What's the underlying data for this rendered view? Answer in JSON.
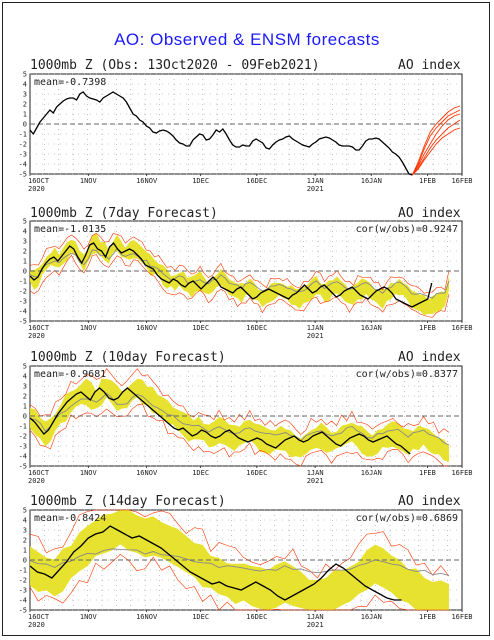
{
  "title": "AO: Observed & ENSM forecasts",
  "colors": {
    "title": "#1a1aff",
    "observed": "#000000",
    "ensemble_band": "#e6e024",
    "ensemble_member": "#ff3300",
    "ensemble_mean": "#888888",
    "zero_line": "#666666"
  },
  "chart_data": [
    {
      "type": "line",
      "title": "1000mb Z (Obs: 13Oct2020 - 09Feb2021)",
      "right_label": "AO index",
      "mean_label": "mean=-0.7398",
      "xlabel": "",
      "ylabel": "",
      "x_tick_labels": [
        "16OCT\n2020",
        "1NOV",
        "16NOV",
        "1DEC",
        "16DEC",
        "1JAN\n2021",
        "16JAN",
        "1FEB",
        "16FEB"
      ],
      "y_ticks": [
        5,
        4,
        3,
        2,
        1,
        0,
        -1,
        -2,
        -3,
        -4,
        -5
      ],
      "ylim": [
        -5,
        5
      ],
      "grid": true,
      "series": [
        {
          "name": "",
          "values": [
            -0.6,
            -1.0,
            -0.4,
            0.2,
            0.6,
            1.0,
            1.4,
            1.1,
            1.7,
            2.0,
            2.3,
            2.5,
            2.6,
            2.6,
            2.4,
            3.0,
            3.2,
            2.8,
            2.6,
            2.5,
            2.4,
            2.2,
            2.6,
            2.8,
            3.0,
            3.2,
            3.0,
            2.8,
            2.6,
            2.2,
            1.6,
            1.0,
            0.8,
            0.4,
            0.2,
            -0.2,
            -0.4,
            -0.8,
            -0.9,
            -0.7,
            -0.6,
            -0.7,
            -0.9,
            -1.2,
            -1.6,
            -1.9,
            -2.0,
            -2.2,
            -2.2,
            -1.6,
            -1.3,
            -1.0,
            -1.1,
            -1.6,
            -1.5,
            -1.1,
            -0.6,
            -0.8,
            -0.5,
            -1.0,
            -1.6,
            -2.1,
            -2.3,
            -2.3,
            -2.1,
            -2.2,
            -2.2,
            -1.7,
            -1.5,
            -1.7,
            -1.9,
            -2.4,
            -2.5,
            -2.1,
            -1.8,
            -1.6,
            -1.5,
            -1.3,
            -1.2,
            -1.5,
            -1.7,
            -1.9,
            -2.1,
            -2.2,
            -2.3,
            -2.0,
            -1.8,
            -1.5,
            -1.4,
            -1.3,
            -1.4,
            -1.6,
            -1.8,
            -2.1,
            -2.2,
            -2.2,
            -2.2,
            -2.3,
            -2.6,
            -2.6,
            -2.2,
            -1.7,
            -1.5,
            -1.5,
            -1.4,
            -1.5,
            -1.8,
            -2.1,
            -2.4,
            -2.8,
            -3.0,
            -3.3,
            -3.8,
            -4.4,
            -5.0,
            -5.1
          ]
        },
        {
          "name": "",
          "values": [
            -5.1,
            -4.0,
            -2.5,
            -1.2,
            -0.4,
            0.2,
            0.8,
            1.1,
            1.4
          ]
        },
        {
          "name": "",
          "values": [
            -5.1,
            -4.2,
            -3.0,
            -2.0,
            -1.0,
            -0.2,
            0.4,
            0.8,
            1.0
          ]
        },
        {
          "name": "",
          "values": [
            -5.1,
            -4.5,
            -3.6,
            -2.8,
            -2.0,
            -1.4,
            -1.0,
            -0.6,
            -0.4
          ]
        },
        {
          "name": "",
          "values": [
            -5.1,
            -3.8,
            -2.2,
            -0.8,
            0.0,
            0.6,
            1.2,
            1.6,
            1.8
          ]
        },
        {
          "name": "",
          "values": [
            -5.1,
            -4.4,
            -3.4,
            -2.4,
            -1.6,
            -1.0,
            -0.4,
            0.0,
            0.4
          ]
        }
      ]
    },
    {
      "type": "line",
      "title": "1000mb Z (7day Forecast)",
      "right_label": "AO index",
      "mean_label": "mean=-1.0135",
      "cor_label": "cor(w/obs)=0.9247",
      "xlabel": "",
      "ylabel": "",
      "x_tick_labels": [
        "16OCT\n2020",
        "1NOV",
        "16NOV",
        "1DEC",
        "16DEC",
        "1JAN\n2021",
        "16JAN",
        "1FEB",
        "16FEB"
      ],
      "y_ticks": [
        5,
        4,
        3,
        2,
        1,
        0,
        -1,
        -2,
        -3,
        -4,
        -5
      ],
      "ylim": [
        -5,
        5
      ],
      "grid": true,
      "series": [
        {
          "name": "",
          "values": [
            -0.5,
            -0.9,
            -0.6,
            0.2,
            0.8,
            1.2,
            1.4,
            1.0,
            1.5,
            2.0,
            2.5,
            2.2,
            1.4,
            0.8,
            1.6,
            2.6,
            2.8,
            2.2,
            2.0,
            1.4,
            2.4,
            2.8,
            2.2,
            1.8,
            2.0,
            2.2,
            2.0,
            1.6,
            1.2,
            0.6,
            0.4,
            0.2,
            -0.4,
            -0.8,
            -1.0,
            -1.2,
            -0.8,
            -1.0,
            -1.4,
            -1.6,
            -1.2,
            -1.0,
            -1.4,
            -1.8,
            -1.4,
            -1.0,
            -0.6,
            -1.0,
            -1.6,
            -1.8,
            -2.0,
            -2.2,
            -1.8,
            -1.6,
            -2.0,
            -2.4,
            -2.8,
            -2.6,
            -2.2,
            -2.0,
            -1.8,
            -2.0,
            -2.2,
            -2.4,
            -2.6,
            -2.8,
            -2.4,
            -2.2,
            -1.8,
            -1.4,
            -1.8,
            -2.2,
            -2.0,
            -1.6,
            -1.4,
            -1.8,
            -2.2,
            -2.6,
            -2.4,
            -2.0,
            -1.8,
            -1.6,
            -2.0,
            -2.4,
            -2.6,
            -2.8,
            -2.4,
            -2.0,
            -1.8,
            -1.6,
            -1.8,
            -2.2,
            -2.8,
            -3.0,
            -3.2,
            -3.4,
            -3.6,
            -3.4,
            -3.2,
            -3.0,
            -2.8,
            -1.2
          ]
        }
      ]
    },
    {
      "type": "line",
      "title": "1000mb Z (10day Forecast)",
      "right_label": "AO index",
      "mean_label": "mean=-0.9681",
      "cor_label": "cor(w/obs)=0.8377",
      "xlabel": "",
      "ylabel": "",
      "x_tick_labels": [
        "16OCT\n2020",
        "1NOV",
        "16NOV",
        "1DEC",
        "16DEC",
        "1JAN\n2021",
        "16JAN",
        "1FEB",
        "16FEB"
      ],
      "y_ticks": [
        5,
        4,
        3,
        2,
        1,
        0,
        -1,
        -2,
        -3,
        -4,
        -5
      ],
      "ylim": [
        -5,
        5
      ],
      "grid": true,
      "series": [
        {
          "name": "",
          "values": [
            -0.2,
            -0.6,
            -1.2,
            -1.8,
            -1.4,
            -0.6,
            0.2,
            0.8,
            1.4,
            1.8,
            2.2,
            2.4,
            2.0,
            1.6,
            2.4,
            2.8,
            2.4,
            1.8,
            1.6,
            1.8,
            2.4,
            2.8,
            2.4,
            2.0,
            1.6,
            1.2,
            0.8,
            0.4,
            0.0,
            -0.4,
            -0.8,
            -1.2,
            -1.4,
            -1.2,
            -1.6,
            -2.0,
            -1.8,
            -1.4,
            -1.6,
            -2.0,
            -2.2,
            -2.0,
            -1.6,
            -1.4,
            -1.8,
            -2.2,
            -2.4,
            -2.6,
            -2.4,
            -2.2,
            -2.4,
            -2.8,
            -3.0,
            -3.2,
            -2.8,
            -2.4,
            -2.2,
            -2.0,
            -2.4,
            -2.6,
            -2.4,
            -2.0,
            -1.8,
            -1.6,
            -2.0,
            -2.4,
            -2.8,
            -3.0,
            -2.6,
            -2.2,
            -2.0,
            -1.8,
            -2.0,
            -2.4,
            -2.6,
            -2.4,
            -2.2,
            -2.0,
            -2.4,
            -2.8,
            -3.0,
            -3.4,
            -3.8
          ]
        }
      ]
    },
    {
      "type": "line",
      "title": "1000mb Z (14day Forecast)",
      "right_label": "AO index",
      "mean_label": "mean=-0.8424",
      "cor_label": "cor(w/obs)=0.6869",
      "xlabel": "",
      "ylabel": "",
      "x_tick_labels": [
        "16OCT\n2020",
        "1NOV",
        "16NOV",
        "1DEC",
        "16DEC",
        "1JAN\n2021",
        "16JAN",
        "1FEB",
        "16FEB"
      ],
      "y_ticks": [
        5,
        4,
        3,
        2,
        1,
        0,
        -1,
        -2,
        -3,
        -4,
        -5
      ],
      "ylim": [
        -5,
        5
      ],
      "grid": true,
      "series": [
        {
          "name": "",
          "values": [
            -0.6,
            -1.2,
            -1.4,
            -1.8,
            -1.0,
            -0.2,
            0.8,
            1.4,
            2.2,
            2.6,
            2.8,
            3.4,
            3.0,
            2.6,
            2.2,
            2.4,
            2.0,
            1.6,
            1.2,
            0.6,
            0.0,
            -0.6,
            -1.2,
            -1.6,
            -2.0,
            -2.4,
            -2.2,
            -2.6,
            -2.8,
            -3.0,
            -2.6,
            -2.2,
            -2.6,
            -3.0,
            -3.6,
            -4.0,
            -3.6,
            -3.2,
            -2.8,
            -2.4,
            -1.8,
            -1.0,
            -0.4,
            -0.8,
            -1.4,
            -2.0,
            -2.6,
            -3.0,
            -3.4,
            -3.8,
            -4.0,
            -4.0
          ]
        }
      ]
    }
  ]
}
